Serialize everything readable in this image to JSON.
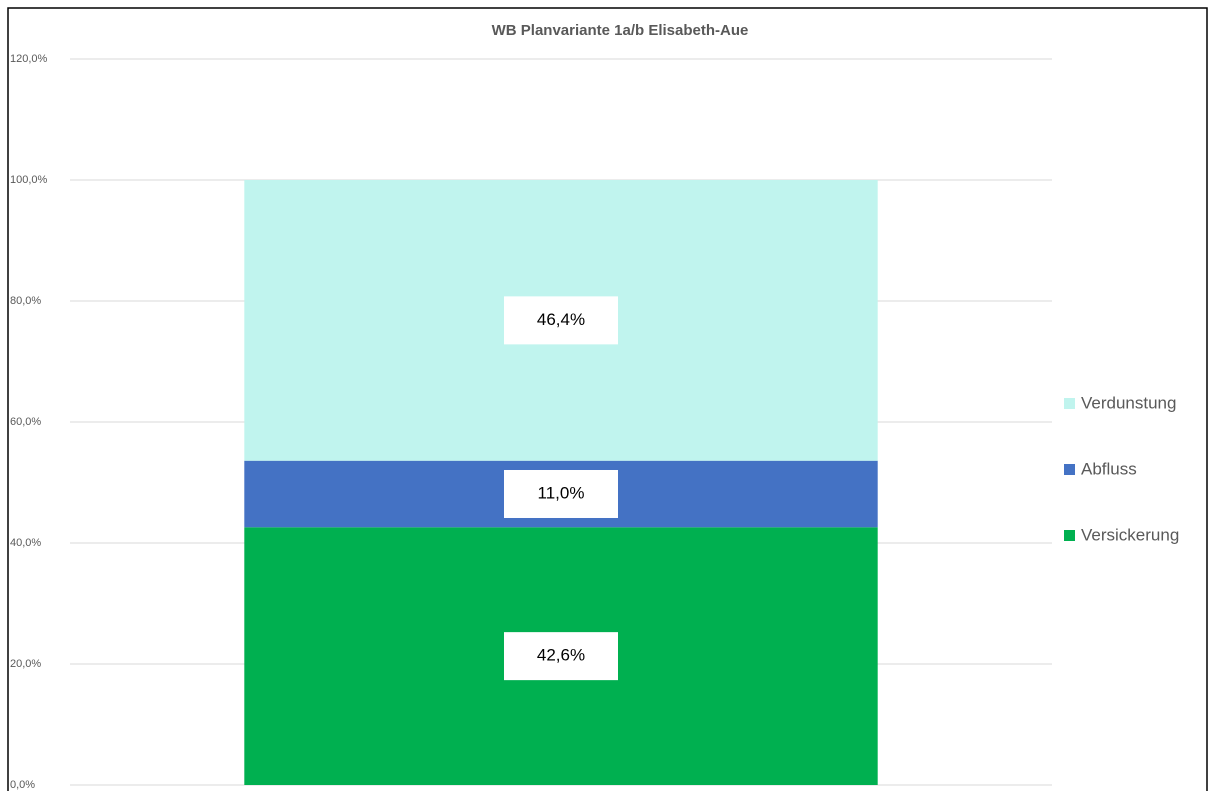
{
  "chart_data": {
    "type": "stacked_bar",
    "title": "WB Planvariante 1a/b Elisabeth-Aue",
    "categories": [
      null
    ],
    "series": [
      {
        "name": "Versickerung",
        "color": "#00b050",
        "values": [
          42.6
        ],
        "value_labels": [
          "42,6%"
        ]
      },
      {
        "name": "Abfluss",
        "color": "#4472c4",
        "values": [
          11.0
        ],
        "value_labels": [
          "11,0%"
        ]
      },
      {
        "name": "Verdunstung",
        "color": "#c0f4ee",
        "values": [
          46.4
        ],
        "value_labels": [
          "46,4%"
        ]
      }
    ],
    "ylim": [
      0,
      120
    ],
    "yticks": [
      {
        "value": 0,
        "label": "0,0%"
      },
      {
        "value": 20,
        "label": "20,0%"
      },
      {
        "value": 40,
        "label": "40,0%"
      },
      {
        "value": 60,
        "label": "60,0%"
      },
      {
        "value": 80,
        "label": "80,0%"
      },
      {
        "value": 100,
        "label": "100,0%"
      },
      {
        "value": 120,
        "label": "120,0%"
      }
    ],
    "grid": true,
    "legend": "right"
  }
}
